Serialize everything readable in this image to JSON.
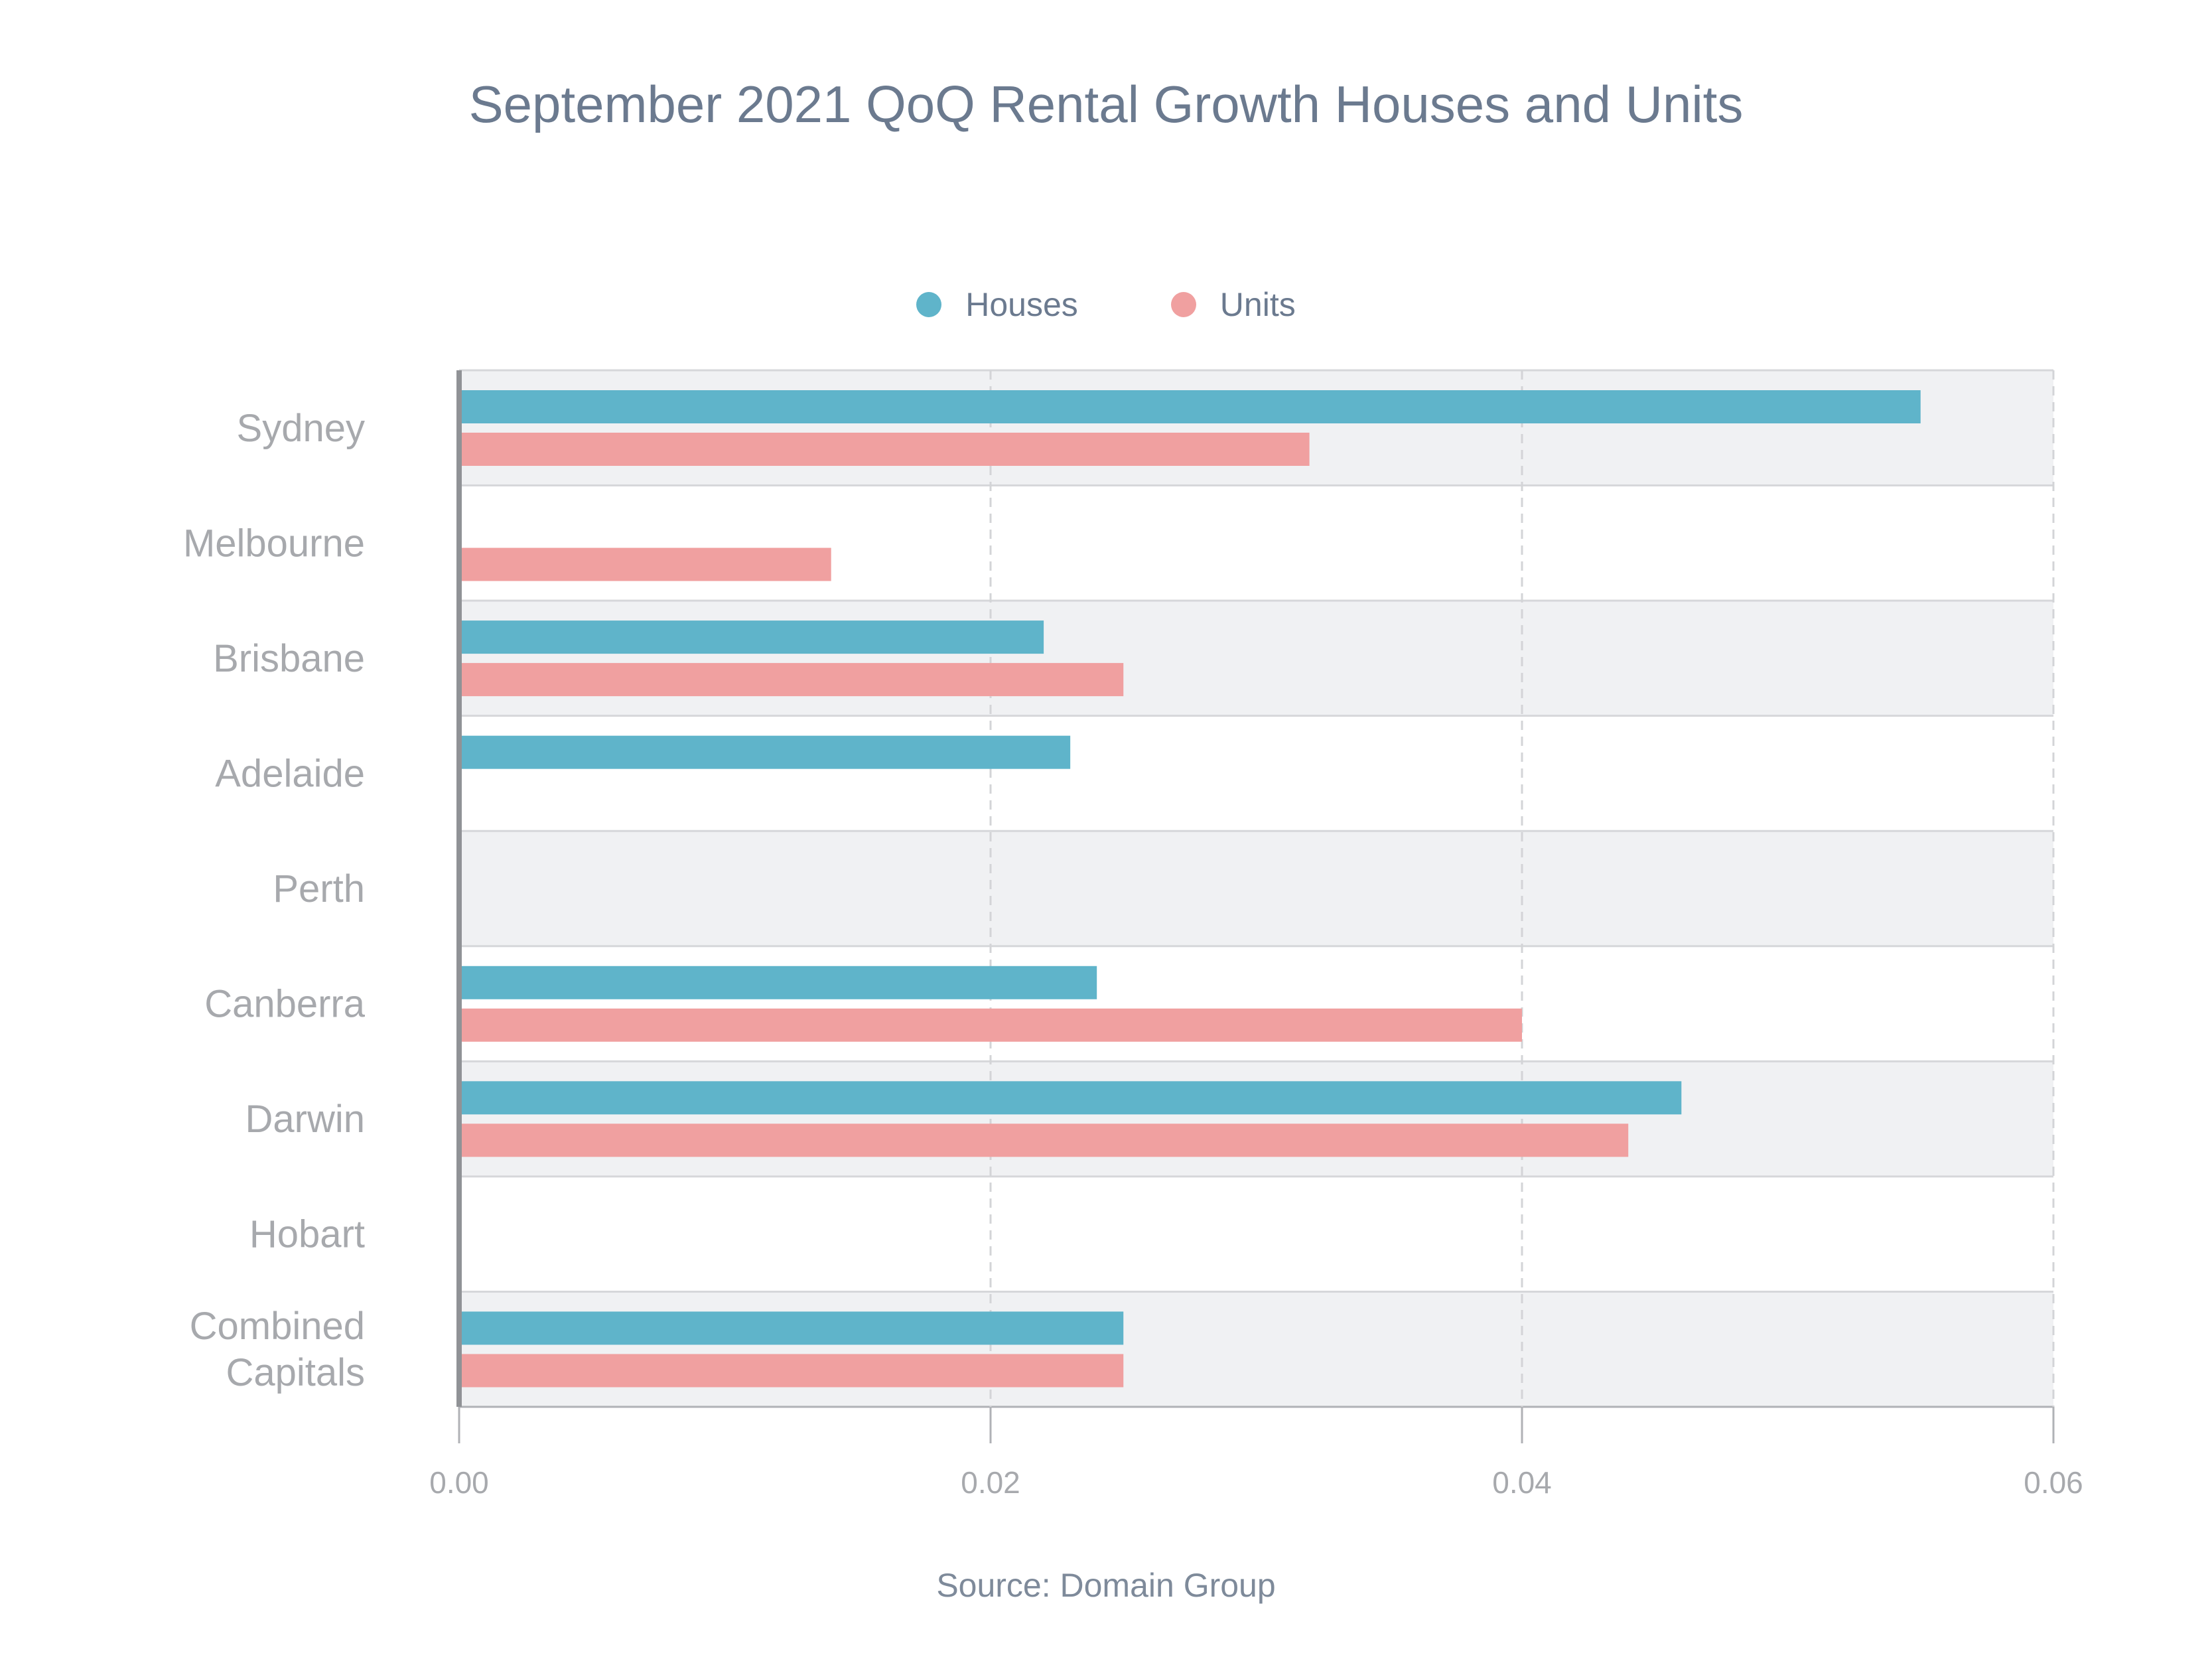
{
  "chart_data": {
    "type": "bar",
    "orientation": "horizontal",
    "title": "September 2021 QoQ Rental Growth Houses and Units",
    "xlabel": "",
    "ylabel": "",
    "source": "Source: Domain Group",
    "categories": [
      "Sydney",
      "Melbourne",
      "Brisbane",
      "Adelaide",
      "Perth",
      "Canberra",
      "Darwin",
      "Hobart",
      "Combined Capitals"
    ],
    "category_lines": [
      [
        "Sydney"
      ],
      [
        "Melbourne"
      ],
      [
        "Brisbane"
      ],
      [
        "Adelaide"
      ],
      [
        "Perth"
      ],
      [
        "Canberra"
      ],
      [
        "Darwin"
      ],
      [
        "Hobart"
      ],
      [
        "Combined",
        "Capitals"
      ]
    ],
    "series": [
      {
        "name": "Houses",
        "color": "#5fb4ca",
        "values": [
          0.055,
          null,
          0.022,
          0.023,
          null,
          0.024,
          0.046,
          null,
          0.025
        ]
      },
      {
        "name": "Units",
        "color": "#f0a0a0",
        "values": [
          0.032,
          0.014,
          0.025,
          null,
          null,
          0.04,
          0.044,
          null,
          0.025
        ]
      }
    ],
    "xlim": [
      0,
      0.06
    ],
    "xticks": [
      0.0,
      0.02,
      0.04,
      0.06
    ],
    "xtick_labels": [
      "0.00",
      "0.02",
      "0.04",
      "0.06"
    ],
    "grid": true,
    "legend_position": "top-center",
    "band_colors": [
      "#f0f1f3",
      "#ffffff"
    ]
  }
}
